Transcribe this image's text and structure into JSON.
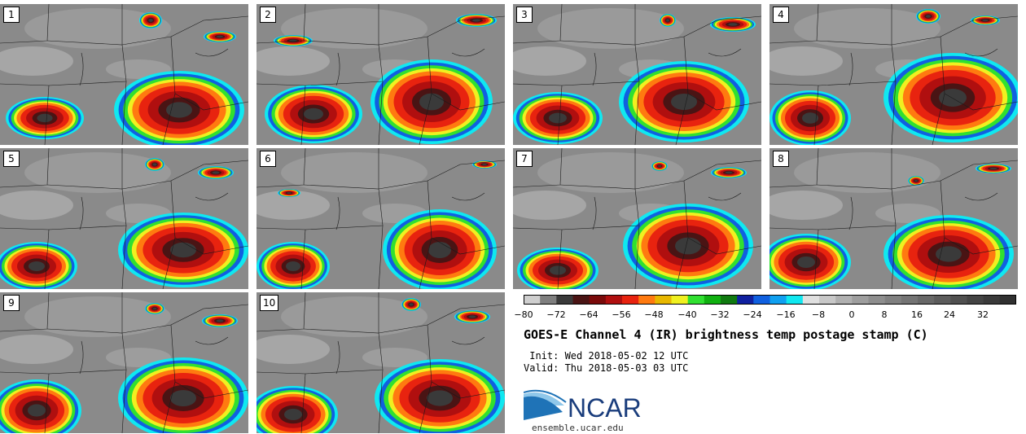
{
  "title": "GOES-E Channel 4 (IR) brightness temp postage stamp (C)",
  "init_text": " Init: Wed 2018-05-02 12 UTC",
  "valid_text": "Valid: Thu 2018-05-03 03 UTC",
  "logo_text": "NCAR",
  "site": "ensemble.ucar.edu",
  "panels": [
    "1",
    "2",
    "3",
    "4",
    "5",
    "6",
    "7",
    "8",
    "9",
    "10"
  ],
  "colorbar": {
    "tick_labels": [
      "−80",
      "−72",
      "−64",
      "−56",
      "−48",
      "−40",
      "−32",
      "−24",
      "−16",
      "−8",
      "0",
      "8",
      "16",
      "24",
      "32"
    ],
    "colors": [
      "#cfcfcf",
      "#7f7f7f",
      "#3a3a3a",
      "#4a1414",
      "#7a0a0a",
      "#b00f0f",
      "#e8230f",
      "#ff7a10",
      "#e8b800",
      "#f0f020",
      "#30e030",
      "#10b010",
      "#107a10",
      "#1020a0",
      "#1060e0",
      "#10a0f0",
      "#10e8f0",
      "#e0e0e0",
      "#c8c8c8",
      "#b0b0b0",
      "#9e9e9e",
      "#8e8e8e",
      "#808080",
      "#747474",
      "#686868",
      "#5c5c5c",
      "#505050",
      "#444444",
      "#3a3a3a",
      "#303030"
    ]
  }
}
